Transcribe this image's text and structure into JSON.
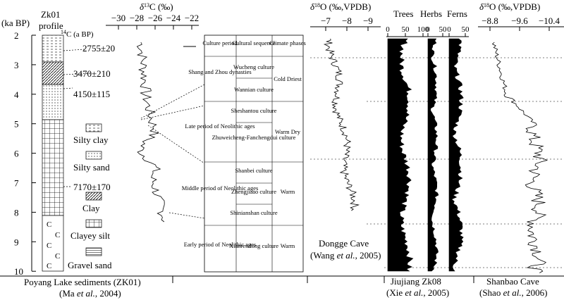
{
  "colors": {
    "ink": "#000000",
    "background": "#ffffff"
  },
  "age_axis": {
    "label": "(ka BP)",
    "ticks": [
      "2",
      "3",
      "4",
      "5",
      "6",
      "7",
      "8",
      "9",
      "10"
    ]
  },
  "zk01": {
    "title_line1": "Zk01",
    "title_line2": "profile",
    "c14_label": "14C (a BP)",
    "dates": [
      "2755±20",
      "3470±210",
      "4150±115",
      "7170±170"
    ],
    "legend": [
      "Silty clay",
      "Silty sand",
      "Clay",
      "Clayey silt",
      "Gravel sand"
    ],
    "d13c_label": "δ13C (‰)",
    "d13c_ticks": [
      "−30",
      "−28",
      "−26",
      "−24",
      "−22"
    ],
    "source_line1": "Poyang Lake sediments (ZK01)",
    "source_line2": "(Ma et al., 2004)"
  },
  "culture_table": {
    "headers": [
      "Culture period",
      "Cultural sequence",
      "Climate phases"
    ],
    "periods": [
      {
        "period": "Shang and Zhou dynasties",
        "cultures": [
          "Wucheng culture",
          "Wannian culture"
        ],
        "climate": "Cold Driest"
      },
      {
        "period": "Late period of Neolithic ages",
        "cultures": [
          "Sheshantou culture",
          "Zhuweicheng-Fanchengdui culture"
        ],
        "climate": "Warm Dry"
      },
      {
        "period": "Middle period of Neolithic ages",
        "cultures": [
          "Shanbei culture",
          "Zhengjiaao culture",
          "Shinianshan culture"
        ],
        "climate": "Warm"
      },
      {
        "period": "Early period of Neolithic ages",
        "cultures": [
          "Xianrendong culture"
        ],
        "climate": "Warm"
      }
    ]
  },
  "dongge": {
    "axis_label": "δ18O (‰,VPDB)",
    "ticks": [
      "−7",
      "−8",
      "−9"
    ],
    "name": "Dongge Cave",
    "source": "(Wang et al., 2005)"
  },
  "jiujiang": {
    "headers": [
      "Trees",
      "Herbs",
      "Ferns"
    ],
    "trees_ticks": [
      "0",
      "50",
      "100"
    ],
    "herbs_ticks": [
      "0",
      "50"
    ],
    "ferns_ticks": [
      "0",
      "50"
    ],
    "name": "Jiujiang Zk08",
    "source": "(Xie et al., 2005)"
  },
  "shanbao": {
    "axis_label": "δ18O (‰,VPDB)",
    "ticks": [
      "−8.8",
      "−9.6",
      "−10.4"
    ],
    "name": "Shanbao Cave",
    "source": "(Shao et al., 2006)"
  }
}
